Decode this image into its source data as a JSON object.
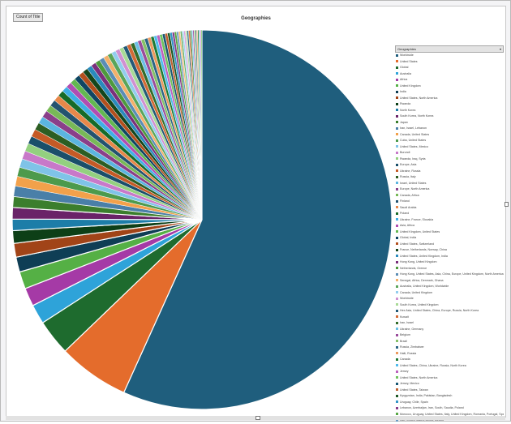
{
  "field_button": {
    "label": "Count of Title"
  },
  "legend_header": {
    "label": "Geographies"
  },
  "chart_data": {
    "type": "pie",
    "title": "Geographies",
    "legend_placement": "right",
    "slices": [
      {
        "name": "Worldwide",
        "value": 58.0,
        "color": "#1f5e7d"
      },
      {
        "name": "United States",
        "value": 6.2,
        "color": "#e46c2c"
      },
      {
        "name": "Global",
        "value": 3.1,
        "color": "#1e6b2e"
      },
      {
        "name": "Australia",
        "value": 1.7,
        "color": "#2ea3d9"
      },
      {
        "name": "Africa",
        "value": 1.6,
        "color": "#a53aa6"
      },
      {
        "name": "United Kingdom",
        "value": 1.5,
        "color": "#55b045"
      },
      {
        "name": "India",
        "value": 1.3,
        "color": "#0f3e55"
      },
      {
        "name": "United States, North America",
        "value": 1.2,
        "color": "#a14418"
      },
      {
        "name": "Rwanda",
        "value": 1.1,
        "color": "#0d3f17"
      },
      {
        "name": "North Korea",
        "value": 1.0,
        "color": "#1d7da8"
      },
      {
        "name": "South Korea, North Korea",
        "value": 1.0,
        "color": "#6a2368"
      },
      {
        "name": "Japan",
        "value": 0.95,
        "color": "#3b7e2d"
      },
      {
        "name": "Iran, Israel, Lebanon",
        "value": 0.9,
        "color": "#4a7fa8"
      },
      {
        "name": "Canada, United States",
        "value": 0.85,
        "color": "#f2a14b"
      },
      {
        "name": "Cuba, United States",
        "value": 0.8,
        "color": "#4c9a4c"
      },
      {
        "name": "United States, Mexico",
        "value": 0.75,
        "color": "#7fc3e8"
      },
      {
        "name": "Burundi",
        "value": 0.72,
        "color": "#c879c9"
      },
      {
        "name": "Rwanda, Iraq, Syria",
        "value": 0.7,
        "color": "#93d07f"
      },
      {
        "name": "Europe, Asia",
        "value": 0.68,
        "color": "#1a4f6a"
      },
      {
        "name": "Ukraine, Russia",
        "value": 0.66,
        "color": "#c55a26"
      },
      {
        "name": "Russia, Italy",
        "value": 0.64,
        "color": "#2c5e23"
      },
      {
        "name": "Israel, United States",
        "value": 0.62,
        "color": "#5bb5e0"
      },
      {
        "name": "Europe, North America",
        "value": 0.6,
        "color": "#8a3f8a"
      },
      {
        "name": "Canada, Africa",
        "value": 0.58,
        "color": "#78b957"
      },
      {
        "name": "Finland",
        "value": 0.56,
        "color": "#23536f"
      },
      {
        "name": "Saudi Arabia",
        "value": 0.54,
        "color": "#e8884a"
      },
      {
        "name": "Poland",
        "value": 0.52,
        "color": "#176b28"
      },
      {
        "name": "Ukraine, France, Slovakia",
        "value": 0.5,
        "color": "#3fb0e6"
      },
      {
        "name": "Asia, Africa",
        "value": 0.49,
        "color": "#b04eb2"
      },
      {
        "name": "United Kingdom, United States",
        "value": 0.48,
        "color": "#63b851"
      },
      {
        "name": "Global, India",
        "value": 0.47,
        "color": "#0f4663"
      },
      {
        "name": "United States, Switzerland",
        "value": 0.46,
        "color": "#b34f1d"
      },
      {
        "name": "France, Netherlands, Norway, China",
        "value": 0.45,
        "color": "#14461c"
      },
      {
        "name": "United States, United Kingdom, India",
        "value": 0.44,
        "color": "#2a8bbd"
      },
      {
        "name": "Hong Kong, United Kingdom",
        "value": 0.43,
        "color": "#7b2f7c"
      },
      {
        "name": "Netherlands, Greece",
        "value": 0.42,
        "color": "#4d9a3c"
      },
      {
        "name": "Hong Kong, United States, Asia, China, Europe, United Kingdom, North America",
        "value": 0.41,
        "color": "#5b8db5"
      },
      {
        "name": "Senegal, Africa, Denmark, Ghana",
        "value": 0.4,
        "color": "#f4b06a"
      },
      {
        "name": "Australia, United Kingdom, Worldwide",
        "value": 0.39,
        "color": "#5aa55a"
      },
      {
        "name": "Canada, United Kingdom",
        "value": 0.38,
        "color": "#92cdee"
      },
      {
        "name": "Worldwide",
        "value": 0.37,
        "color": "#d090d1"
      },
      {
        "name": "South Korea, United Kingdom",
        "value": 0.36,
        "color": "#a8da96"
      },
      {
        "name": "Hex Asia, United States, China, Europe, Russia, North Korea",
        "value": 0.35,
        "color": "#245a77"
      },
      {
        "name": "Kuwait",
        "value": 0.34,
        "color": "#d36a35"
      },
      {
        "name": "Iran, Israel",
        "value": 0.33,
        "color": "#336c2a"
      },
      {
        "name": "Ukraine, Germany",
        "value": 0.32,
        "color": "#6cc0e6"
      },
      {
        "name": "Belgium",
        "value": 0.31,
        "color": "#9a4c9b"
      },
      {
        "name": "Brazil",
        "value": 0.3,
        "color": "#86c168"
      },
      {
        "name": "Russia, Zimbabwe",
        "value": 0.29,
        "color": "#2b6585"
      },
      {
        "name": "Haiti, Russia",
        "value": 0.28,
        "color": "#ec9a5e"
      },
      {
        "name": "Canada",
        "value": 0.27,
        "color": "#1f7a34"
      },
      {
        "name": "United States, China, Ukraine, Russia, North Korea",
        "value": 0.26,
        "color": "#4fbbec"
      },
      {
        "name": "Jersey",
        "value": 0.25,
        "color": "#bd62bf"
      },
      {
        "name": "United States, North America",
        "value": 0.24,
        "color": "#70c25e"
      },
      {
        "name": "Jersey, Mexico",
        "value": 0.23,
        "color": "#185673"
      },
      {
        "name": "United States, Taiwan",
        "value": 0.22,
        "color": "#c06030"
      },
      {
        "name": "Kyrgyzstan, India, Pakistan, Bangladesh",
        "value": 0.21,
        "color": "#1c5724"
      },
      {
        "name": "Uruguay, Chile, Spain",
        "value": 0.2,
        "color": "#3396c8"
      },
      {
        "name": "Lebanon, Azerbaijan, Iran, South, Saudia, Poland",
        "value": 0.19,
        "color": "#883c89"
      },
      {
        "name": "Morocco, Uruguay, United States, Italy, United Kingdom, Romania, Portugal, Spain, India",
        "value": 0.18,
        "color": "#58a845"
      },
      {
        "name": "Iran, United States, Africa, Mexico",
        "value": 0.17,
        "color": "#6a9ac1"
      },
      {
        "name": "",
        "value": 0.16,
        "color": "#f7bd7e"
      },
      {
        "name": "",
        "value": 0.15,
        "color": "#67b067"
      },
      {
        "name": "",
        "value": 0.15,
        "color": "#a4d6f1"
      },
      {
        "name": "",
        "value": 0.14,
        "color": "#dba3dc"
      },
      {
        "name": "",
        "value": 0.14,
        "color": "#b6e0a6"
      },
      {
        "name": "",
        "value": 0.13,
        "color": "#2f6a8a"
      },
      {
        "name": "",
        "value": 0.13,
        "color": "#de7a42"
      },
      {
        "name": "",
        "value": 0.12,
        "color": "#3d7b33"
      },
      {
        "name": "",
        "value": 0.12,
        "color": "#7fcaee"
      },
      {
        "name": "",
        "value": 0.11,
        "color": "#a85ba9"
      },
      {
        "name": "",
        "value": 0.11,
        "color": "#95c977"
      },
      {
        "name": "",
        "value": 0.1,
        "color": "#355f7a"
      },
      {
        "name": "",
        "value": 0.1,
        "color": "#eeaa70"
      },
      {
        "name": "",
        "value": 0.1,
        "color": "#28843c"
      },
      {
        "name": "",
        "value": 0.09,
        "color": "#5ec3f0"
      },
      {
        "name": "",
        "value": 0.09,
        "color": "#c874ca"
      },
      {
        "name": "",
        "value": 0.09,
        "color": "#7dca6b"
      }
    ]
  }
}
